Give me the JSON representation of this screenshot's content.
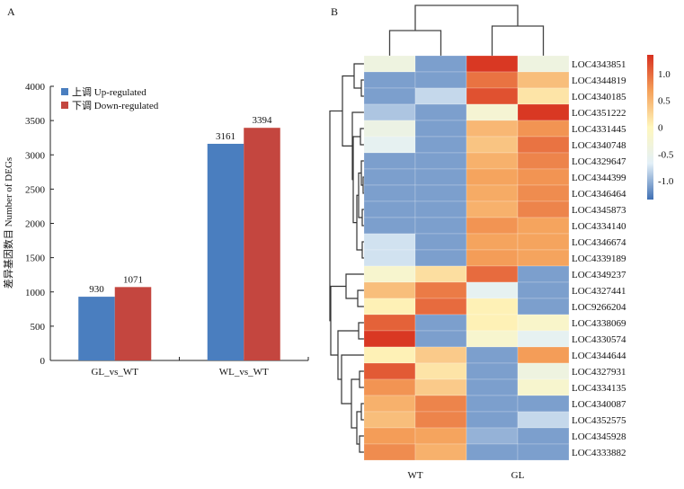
{
  "chart_data": [
    {
      "panel": "A",
      "type": "bar",
      "title": "",
      "xlabel": "",
      "ylabel": "差异基因数目 Number of DEGs",
      "ylim": [
        0,
        4000
      ],
      "yticks": [
        0,
        500,
        1000,
        1500,
        2000,
        2500,
        3000,
        3500,
        4000
      ],
      "categories": [
        "GL_vs_WT",
        "WL_vs_WT"
      ],
      "series": [
        {
          "name": "上调 Up-regulated",
          "color": "#4a7ebf",
          "values": [
            930,
            3161
          ]
        },
        {
          "name": "下调 Down-regulated",
          "color": "#c4463f",
          "values": [
            1071,
            3394
          ]
        }
      ],
      "data_labels": true,
      "legend": "top-left",
      "grid": false
    },
    {
      "panel": "B",
      "type": "heatmap",
      "columns": [
        "WT",
        "WT",
        "GL",
        "GL"
      ],
      "column_group_labels": [
        "WT",
        "GL"
      ],
      "rows": [
        "LOC4343851",
        "LOC4344819",
        "LOC4340185",
        "LOC4351222",
        "LOC4331445",
        "LOC4340748",
        "LOC4329647",
        "LOC4344399",
        "LOC4346464",
        "LOC4345873",
        "LOC4334140",
        "LOC4346674",
        "LOC4339189",
        "LOC4349237",
        "LOC4327441",
        "LOC9266204",
        "LOC4338069",
        "LOC4330574",
        "LOC4344644",
        "LOC4327931",
        "LOC4334135",
        "LOC4340087",
        "LOC4352575",
        "LOC4345928",
        "LOC4333882"
      ],
      "values": [
        [
          -0.4,
          -1.1,
          1.3,
          -0.4
        ],
        [
          -1.1,
          -1.1,
          0.95,
          0.45
        ],
        [
          -1.1,
          -0.8,
          1.15,
          0.15
        ],
        [
          -0.9,
          -1.1,
          -0.25,
          1.3
        ],
        [
          -0.45,
          -1.1,
          0.5,
          0.75
        ],
        [
          -0.6,
          -1.1,
          0.4,
          0.95
        ],
        [
          -1.1,
          -1.1,
          0.55,
          0.85
        ],
        [
          -1.1,
          -1.1,
          0.65,
          0.75
        ],
        [
          -1.1,
          -1.1,
          0.6,
          0.8
        ],
        [
          -1.1,
          -1.1,
          0.55,
          0.85
        ],
        [
          -1.1,
          -1.1,
          0.75,
          0.65
        ],
        [
          -0.75,
          -1.1,
          0.65,
          0.65
        ],
        [
          -0.75,
          -1.1,
          0.7,
          0.65
        ],
        [
          -0.2,
          0.2,
          1.0,
          -1.1
        ],
        [
          0.45,
          0.9,
          -0.6,
          -1.1
        ],
        [
          0.05,
          1.0,
          0.05,
          -1.1
        ],
        [
          1.05,
          -1.1,
          0.05,
          -0.15
        ],
        [
          1.3,
          -1.1,
          -0.2,
          -0.6
        ],
        [
          0.05,
          0.35,
          -1.1,
          0.7
        ],
        [
          1.1,
          0.15,
          -1.1,
          -0.4
        ],
        [
          0.75,
          0.35,
          -1.1,
          -0.2
        ],
        [
          0.55,
          0.85,
          -1.1,
          -1.1
        ],
        [
          0.45,
          0.85,
          -1.1,
          -0.8
        ],
        [
          0.7,
          0.65,
          -1.0,
          -1.1
        ],
        [
          0.8,
          0.55,
          -1.1,
          -1.1
        ]
      ],
      "colorbar": {
        "range": [
          -1.35,
          1.35
        ],
        "ticks": [
          1.0,
          0.5,
          0,
          -0.5,
          -1.0
        ],
        "tick_labels": [
          "1.0",
          "0.5",
          "0",
          "-0.5",
          "-1.0"
        ],
        "colors": [
          "#4070b4",
          "#e3f0f8",
          "#fff7bd",
          "#f5a15a",
          "#d7301f"
        ]
      },
      "row_dendrogram": true,
      "column_dendrogram": true
    }
  ],
  "panel_labels": {
    "a": "A",
    "b": "B"
  }
}
